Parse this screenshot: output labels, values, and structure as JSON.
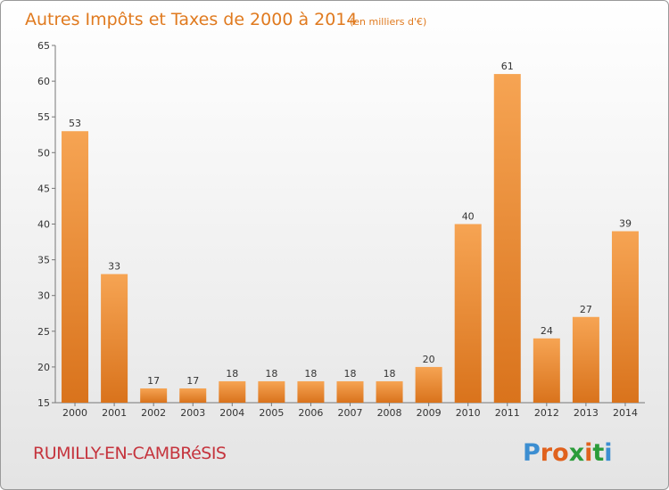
{
  "chart_data": {
    "type": "bar",
    "title": "Autres Impôts et Taxes de 2000 à 2014",
    "subtitle": "(en milliers d'€)",
    "categories": [
      "2000",
      "2001",
      "2002",
      "2003",
      "2004",
      "2005",
      "2006",
      "2007",
      "2008",
      "2009",
      "2010",
      "2011",
      "2012",
      "2013",
      "2014"
    ],
    "values": [
      53,
      33,
      17,
      17,
      18,
      18,
      18,
      18,
      18,
      20,
      40,
      61,
      24,
      27,
      39
    ],
    "ylim": [
      15,
      65
    ],
    "yticks": [
      15,
      20,
      25,
      30,
      35,
      40,
      45,
      50,
      55,
      60,
      65
    ],
    "grid": false,
    "bar_color_top": "#f6a453",
    "bar_color_bottom": "#d9731c"
  },
  "footer": {
    "place": "RUMILLY-EN-CAMBRéSIS",
    "logo": "Proxiti",
    "logo_colors": [
      "#3c8ed1",
      "#e0611d",
      "#e0611d",
      "#2b9c3a",
      "#e0611d",
      "#2b9c3a",
      "#3c8ed1"
    ]
  }
}
